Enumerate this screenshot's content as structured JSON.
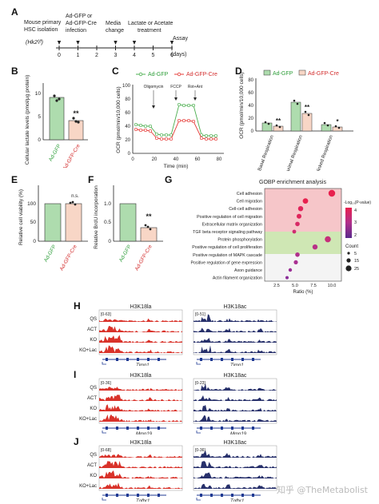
{
  "panels": {
    "A": {
      "label": "A",
      "genotype": "(Hk2ᶠ/ᶠ)",
      "steps": [
        {
          "text1": "Mouse primary",
          "text2": "HSC isolation",
          "day": 0
        },
        {
          "text1": "Ad-GFP or",
          "text2": "Ad-GFP-Cre",
          "text3": "infection",
          "day": 1
        },
        {
          "text1": "Media",
          "text2": "change",
          "day": 3
        },
        {
          "text1": "Lactate or Acetate",
          "text2": "treatment",
          "day": 4
        },
        {
          "text1": "Assay",
          "text2": "",
          "day": 6
        }
      ],
      "days": [
        "0",
        "1",
        "2",
        "3",
        "4",
        "5",
        "6"
      ],
      "days_label": "(days)"
    },
    "B": {
      "label": "B",
      "ylabel": "Cellular lactate levels (pmol/μg protein)",
      "categories": [
        "Ad-GFP",
        "Ad-GFP-Cre"
      ],
      "values": [
        9.2,
        4.2
      ],
      "ylim": [
        0,
        12
      ],
      "yticks": [
        "0",
        "5",
        "10"
      ],
      "sig": "**",
      "colors": [
        "#aedcae",
        "#f8d6c6"
      ]
    },
    "C": {
      "label": "C",
      "legend": [
        "Ad-GFP",
        "Ad-GFP-Cre"
      ],
      "ylabel": "OCR (pmol/min/10,000 cells)",
      "xlabel": "Time (min)",
      "injections": [
        "Oligomycin",
        "FCCP",
        "Rot+Ant"
      ],
      "xticks": [
        "0",
        "20",
        "40",
        "60",
        "80"
      ],
      "yticks": [
        "0",
        "20",
        "40",
        "60",
        "80",
        "100"
      ],
      "colors": [
        "#4caf50",
        "#e53935"
      ]
    },
    "D": {
      "label": "D",
      "legend": [
        "Ad-GFP",
        "Ad-GFP-Cre"
      ],
      "ylabel": "OCR (pmol/min/10,000 cells)",
      "groups": [
        "Basal Respiration",
        "Maximal Respiration",
        "ATP-linked Respiration"
      ],
      "sig": [
        "**",
        "**",
        "*"
      ],
      "yticks": [
        "0",
        "20",
        "40",
        "60",
        "80"
      ]
    },
    "E": {
      "label": "E",
      "ylabel": "Relative cell viability (%)",
      "categories": [
        "Ad-GFP",
        "Ad-GFP-Cre"
      ],
      "yticks": [
        "0",
        "50",
        "100"
      ],
      "sig": "n.s."
    },
    "F": {
      "label": "F",
      "ylabel": "Relative BrdU incorporation",
      "categories": [
        "Ad-GFP",
        "Ad-GFP-Cre"
      ],
      "yticks": [
        "0",
        "0.5",
        "1.0"
      ],
      "sig": "**"
    },
    "G": {
      "label": "G",
      "title": "GOBP enrichment analysis",
      "terms": [
        "Cell adhesion",
        "Cell migration",
        "Cell-cell adhesion",
        "Positive regulation of cell migration",
        "Extracellular matrix organization",
        "TGF beta receptor signaling pathway",
        "Protein phosphorylation",
        "Positive regulation of cell proliferation",
        "Positive regulation of MAPK cascade",
        "Positive regulation of gene expression",
        "Axon guidance",
        "Actin filament organization"
      ],
      "xlabel": "Ratio (%)",
      "xticks": [
        "2.5",
        "5.0",
        "7.5",
        "10.0"
      ],
      "colorbar_title": "-Log₁₀(P-value)",
      "colorbar_ticks": [
        "4",
        "3",
        "2"
      ],
      "size_title": "Count",
      "size_ticks": [
        "5",
        "15",
        "25"
      ]
    },
    "H": {
      "label": "H",
      "left_title": "H3K18la",
      "right_title": "H3K18ac",
      "left_scale": "[0-63]",
      "right_scale": "[0-51]",
      "rows": [
        "QS",
        "ACT",
        "KO",
        "KO+Lac"
      ],
      "gene": "Timp1"
    },
    "I": {
      "label": "I",
      "left_title": "H3K18la",
      "right_title": "H3K18ac",
      "left_scale": "[0-36]",
      "right_scale": "[0-23]",
      "rows": [
        "QS",
        "ACT",
        "KO",
        "KO+Lac"
      ],
      "gene": "Mmp19"
    },
    "J": {
      "label": "J",
      "left_title": "H3K18la",
      "right_title": "H3K18ac",
      "left_scale": "[0-68]",
      "right_scale": "[0-36]",
      "rows": [
        "QS",
        "ACT",
        "KO",
        "KO+Lac"
      ],
      "gene": "Tgfbr1"
    }
  },
  "watermark": "知乎 @TheMetabolist"
}
